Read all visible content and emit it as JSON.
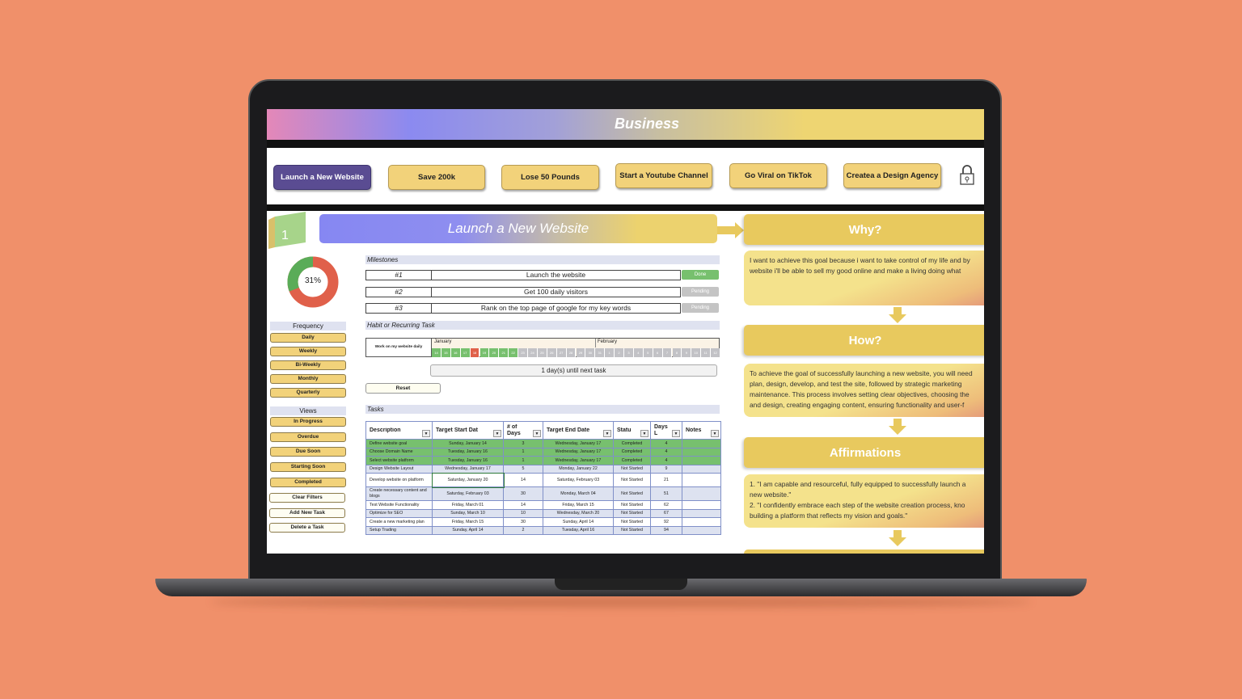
{
  "header": {
    "title": "Business"
  },
  "goal_tabs": [
    {
      "label": "Launch a New Website",
      "active": true
    },
    {
      "label": "Save 200k"
    },
    {
      "label": "Lose 50 Pounds"
    },
    {
      "label": "Start a Youtube Channel"
    },
    {
      "label": "Go Viral on TikTok"
    },
    {
      "label": "Createa a Design Agency"
    }
  ],
  "goal": {
    "number": "1",
    "title": "Launch a New Website",
    "progress_label": "31%",
    "progress": 0.31,
    "colors": {
      "done": "#5aac58",
      "remaining": "#e0604a"
    }
  },
  "sidebar": {
    "frequency_title": "Frequency",
    "frequency": [
      "Daily",
      "Weekly",
      "Bi-Weekly",
      "Monthly",
      "Quarterly"
    ],
    "views_title": "Views",
    "views": [
      "In Progress",
      "Overdue",
      "Due Soon",
      "Starting Soon",
      "Completed"
    ],
    "actions": [
      "Clear Filters",
      "Add New Task",
      "Delete a Task"
    ]
  },
  "milestones": {
    "title": "Milestones",
    "items": [
      {
        "num": "#1",
        "text": "Launch the website",
        "status": "Done"
      },
      {
        "num": "#2",
        "text": "Get 100 daily visitors",
        "status": "Pending"
      },
      {
        "num": "#3",
        "text": "Rank on the top page of google for my key words",
        "status": "Pending"
      }
    ]
  },
  "habit": {
    "title": "Habit or Recurring Task",
    "task": "Work on my website daily",
    "months": [
      "January",
      "February"
    ],
    "days": [
      {
        "d": "14",
        "s": "done"
      },
      {
        "d": "15",
        "s": "done"
      },
      {
        "d": "16",
        "s": "done"
      },
      {
        "d": "17",
        "s": "done"
      },
      {
        "d": "18",
        "s": "missed"
      },
      {
        "d": "19",
        "s": "done"
      },
      {
        "d": "20",
        "s": "done"
      },
      {
        "d": "21",
        "s": "done"
      },
      {
        "d": "22",
        "s": "done"
      },
      {
        "d": "23",
        "s": "future"
      },
      {
        "d": "24",
        "s": "future"
      },
      {
        "d": "25",
        "s": "future"
      },
      {
        "d": "26",
        "s": "future"
      },
      {
        "d": "27",
        "s": "future"
      },
      {
        "d": "28",
        "s": "future"
      },
      {
        "d": "29",
        "s": "future"
      },
      {
        "d": "30",
        "s": "future"
      },
      {
        "d": "31",
        "s": "future"
      },
      {
        "d": "1",
        "s": "future"
      },
      {
        "d": "2",
        "s": "future"
      },
      {
        "d": "3",
        "s": "future"
      },
      {
        "d": "4",
        "s": "future"
      },
      {
        "d": "5",
        "s": "future"
      },
      {
        "d": "6",
        "s": "future"
      },
      {
        "d": "7",
        "s": "future"
      },
      {
        "d": "8",
        "s": "future"
      },
      {
        "d": "9",
        "s": "future"
      },
      {
        "d": "10",
        "s": "future"
      },
      {
        "d": "11",
        "s": "future"
      },
      {
        "d": "12",
        "s": "future"
      }
    ],
    "next_task": "1 day(s) until next task",
    "reset": "Reset"
  },
  "tasks": {
    "title": "Tasks",
    "columns": [
      "Description",
      "Target Start Dat",
      "# of Days Neede",
      "Target End Date",
      "Statu",
      "Days L",
      "Notes"
    ],
    "rows": [
      [
        "Define website goal",
        "Sunday, January 14",
        "3",
        "Wednesday, January 17",
        "Completed",
        "4",
        ""
      ],
      [
        "Choose Domain Name",
        "Tuesday, January 16",
        "1",
        "Wednesday, January 17",
        "Completed",
        "4",
        ""
      ],
      [
        "Select website platform",
        "Tuesday, January 16",
        "1",
        "Wednesday, January 17",
        "Completed",
        "4",
        ""
      ],
      [
        "Design Website Layout",
        "Wednesday, January 17",
        "5",
        "Monday, January 22",
        "Not Started",
        "9",
        ""
      ],
      [
        "Develop website on platform",
        "Saturday, January 20",
        "14",
        "Saturday, February 03",
        "Not Started",
        "21",
        ""
      ],
      [
        "Create necessary content and blogs",
        "Saturday, February 03",
        "30",
        "Monday, March 04",
        "Not Started",
        "51",
        ""
      ],
      [
        "Test Website Functionality",
        "Friday, March 01",
        "14",
        "Friday, March 15",
        "Not Started",
        "62",
        ""
      ],
      [
        "Optimize for SEO",
        "Sunday, March 10",
        "10",
        "Wednesday, March 20",
        "Not Started",
        "67",
        ""
      ],
      [
        "Create a new marketing plan",
        "Friday, March 15",
        "30",
        "Sunday, April 14",
        "Not Started",
        "92",
        ""
      ],
      [
        "Setup Trading",
        "Sunday, April 14",
        "2",
        "Tuesday, April 16",
        "Not Started",
        "94",
        ""
      ]
    ]
  },
  "right": {
    "why_title": "Why?",
    "why_text": [
      "I want to achieve this goal because i want to take control of my life and by",
      "website i'll be able to sell my good online and make a living doing what"
    ],
    "how_title": "How?",
    "how_text": [
      "To achieve the goal of successfully launching a new website, you will need",
      "plan, design, develop, and test the site, followed by strategic marketing",
      "maintenance. This process involves setting clear objectives, choosing the",
      "and design, creating engaging content, ensuring functionality and user-f"
    ],
    "affirm_title": "Affirmations",
    "affirm_text": [
      "1. \"I am capable and resourceful, fully equipped to successfully launch a",
      "new website.\"",
      "2. \"I confidently embrace each step of the website creation process, kno",
      "building a platform that reflects my vision and goals.\""
    ]
  },
  "colors": {
    "background": "#F0906A",
    "gold": "#f2d27a",
    "purple": "#5a4c92",
    "green": "#77c06e",
    "red": "#e0604a"
  }
}
